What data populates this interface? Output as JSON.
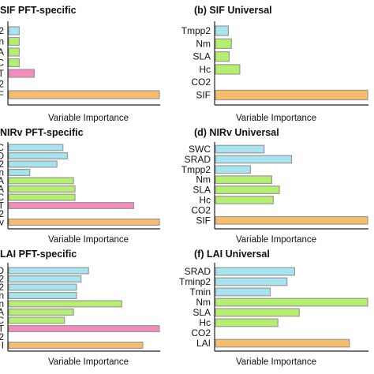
{
  "colors": {
    "cyan": "#a6e4f0",
    "green": "#b4f06e",
    "pink": "#f28cbd",
    "orange": "#f8bd6a",
    "border": "#999999",
    "axis": "#222222"
  },
  "chart_data": [
    {
      "type": "bar",
      "orientation": "horizontal",
      "title": "SIF PFT-specific",
      "xlabel": "Variable Importance",
      "xlim": [
        0,
        1
      ],
      "grid": false,
      "categories": [
        "2",
        "n",
        "A",
        "C",
        "T",
        "2",
        "F"
      ],
      "values": [
        0.07,
        0.07,
        0.07,
        0.07,
        0.17,
        0.0,
        1.0
      ],
      "colors": [
        "cyan",
        "green",
        "green",
        "green",
        "pink",
        "none",
        "orange"
      ]
    },
    {
      "type": "bar",
      "orientation": "horizontal",
      "title": "(b) SIF Universal",
      "xlabel": "Variable Importance",
      "xlim": [
        0,
        1
      ],
      "grid": false,
      "categories": [
        "Tmpp2",
        "Nm",
        "SLA",
        "Hc",
        "CO2",
        "SIF"
      ],
      "values": [
        0.085,
        0.105,
        0.09,
        0.16,
        0.0,
        1.0
      ],
      "colors": [
        "cyan",
        "green",
        "green",
        "green",
        "none",
        "orange"
      ]
    },
    {
      "type": "bar",
      "orientation": "horizontal",
      "title": "NIRv PFT-specific",
      "xlabel": "Variable Importance",
      "xlim": [
        0,
        1
      ],
      "grid": false,
      "categories": [
        "C",
        "D",
        "2",
        "n",
        "A",
        "A",
        "C",
        "T",
        "2",
        "v"
      ],
      "values": [
        0.36,
        0.39,
        0.32,
        0.14,
        0.43,
        0.44,
        0.44,
        0.83,
        0.0,
        1.0
      ],
      "colors": [
        "cyan",
        "cyan",
        "cyan",
        "cyan",
        "green",
        "green",
        "green",
        "pink",
        "none",
        "orange"
      ]
    },
    {
      "type": "bar",
      "orientation": "horizontal",
      "title": "(d) NIRv Universal",
      "xlabel": "Variable Importance",
      "xlim": [
        0,
        1
      ],
      "grid": false,
      "categories": [
        "SWC",
        "SRAD",
        "Tmpp2",
        "Nm",
        "SLA",
        "Hc",
        "CO2",
        "SIF"
      ],
      "values": [
        0.32,
        0.5,
        0.23,
        0.37,
        0.42,
        0.38,
        0.0,
        1.0
      ],
      "colors": [
        "cyan",
        "cyan",
        "cyan",
        "green",
        "green",
        "green",
        "none",
        "orange"
      ]
    },
    {
      "type": "bar",
      "orientation": "horizontal",
      "title": "LAI PFT-specific",
      "xlabel": "Variable Importance",
      "xlim": [
        0,
        1
      ],
      "grid": false,
      "categories": [
        "D",
        "2",
        "2",
        "n",
        "n",
        "A",
        "C",
        "T",
        "2",
        "I"
      ],
      "values": [
        0.53,
        0.48,
        0.45,
        0.45,
        0.75,
        0.43,
        0.37,
        1.0,
        0.0,
        0.89
      ],
      "colors": [
        "cyan",
        "cyan",
        "cyan",
        "cyan",
        "green",
        "green",
        "green",
        "pink",
        "none",
        "orange"
      ]
    },
    {
      "type": "bar",
      "orientation": "horizontal",
      "title": "(f) LAI Universal",
      "xlabel": "Variable Importance",
      "xlim": [
        0,
        1
      ],
      "grid": false,
      "categories": [
        "SRAD",
        "Tminp2",
        "Tmin",
        "Nm",
        "SLA",
        "Hc",
        "CO2",
        "LAI"
      ],
      "values": [
        0.52,
        0.47,
        0.36,
        1.0,
        0.55,
        0.41,
        0.0,
        0.88
      ],
      "colors": [
        "cyan",
        "cyan",
        "cyan",
        "green",
        "green",
        "green",
        "none",
        "orange"
      ]
    }
  ]
}
